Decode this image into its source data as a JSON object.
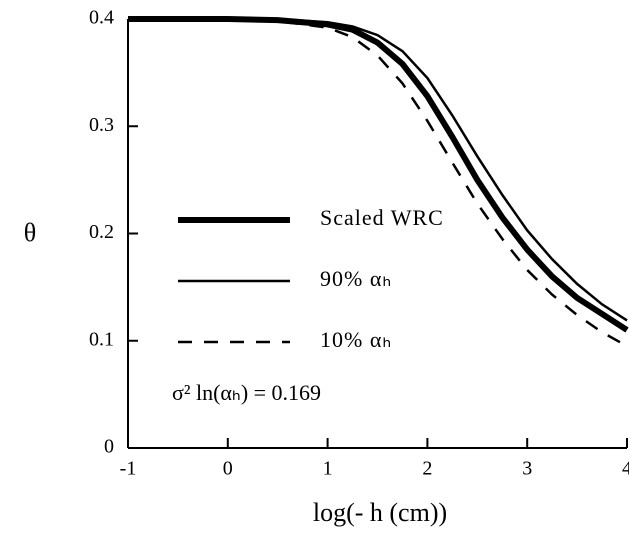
{
  "chart_data": {
    "type": "line",
    "xlabel": "log(- h (cm))",
    "ylabel": "θ",
    "x": [
      -1,
      0,
      0.5,
      1,
      1.25,
      1.5,
      1.75,
      2,
      2.25,
      2.5,
      2.75,
      3,
      3.25,
      3.5,
      3.75,
      4
    ],
    "series": [
      {
        "name": "Scaled WRC",
        "color": "#000000",
        "line_width": 6,
        "dash": "solid",
        "values": [
          0.4,
          0.4,
          0.399,
          0.395,
          0.39,
          0.378,
          0.358,
          0.328,
          0.29,
          0.25,
          0.215,
          0.185,
          0.16,
          0.14,
          0.125,
          0.11
        ]
      },
      {
        "name": "90% αₕ",
        "color": "#000000",
        "line_width": 2.5,
        "dash": "solid",
        "values": [
          0.4,
          0.4,
          0.4,
          0.397,
          0.393,
          0.385,
          0.37,
          0.345,
          0.31,
          0.272,
          0.236,
          0.203,
          0.176,
          0.153,
          0.134,
          0.119
        ]
      },
      {
        "name": "10% αₕ",
        "color": "#000000",
        "line_width": 2.5,
        "dash": "dashed",
        "values": [
          0.4,
          0.4,
          0.398,
          0.392,
          0.383,
          0.366,
          0.34,
          0.305,
          0.266,
          0.228,
          0.195,
          0.166,
          0.143,
          0.124,
          0.108,
          0.095
        ]
      }
    ],
    "annotation": "σ² ln(αₕ) = 0.169",
    "xlim": [
      -1,
      4
    ],
    "xticks": [
      -1,
      0,
      1,
      2,
      3,
      4
    ],
    "ylim": [
      0,
      0.4
    ],
    "yticks": [
      0,
      0.1,
      0.2,
      0.3,
      0.4
    ],
    "grid": false
  }
}
